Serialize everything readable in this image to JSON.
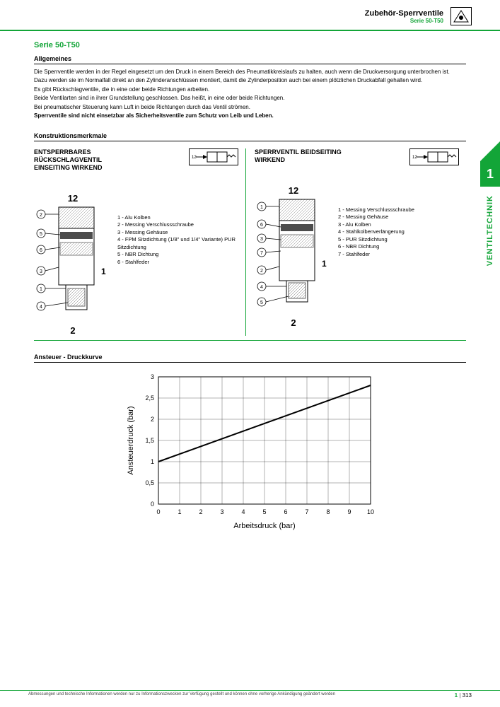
{
  "header": {
    "title": "Zubehör-Sperrventile",
    "subtitle": "Serie 50-T50",
    "logo_text": "PNEUMAX"
  },
  "side_tab": {
    "number": "1",
    "text": "VENTILTECHNIK"
  },
  "series_title": "Serie 50-T50",
  "general": {
    "heading": "Allgemeines",
    "p1": "Die Sperrventile werden in der Regel eingesetzt um den Druck in einem Bereich des Pneumatikkreislaufs zu halten, auch wenn die Druckversorgung unterbrochen ist.",
    "p2": "Dazu werden sie im Normalfall direkt an den Zylinderanschlüssen montiert, damit die Zylinderposition auch bei einem plötzlichen Druckabfall gehalten wird.",
    "p3": "Es gibt Rückschlagventile, die in eine oder beide Richtungen arbeiten.",
    "p4": "Beide Ventilarten sind in ihrer Grundstellung geschlossen. Das heißt, in eine oder beide Richtungen.",
    "p5": "Bei pneumatischer Steuerung kann Luft in beide Richtungen durch das Ventil strömen.",
    "p6": "Sperrventile sind nicht einsetzbar als Sicherheitsventile zum Schutz von Leib und Leben."
  },
  "construction_heading": "Konstruktionsmerkmale",
  "diagrams": {
    "left": {
      "title_l1": "ENTSPERRBARES",
      "title_l2": "RÜCKSCHLAGVENTIL",
      "title_l3": "EINSEITING WIRKEND",
      "port_top": "12",
      "port_mid": "1",
      "port_bot": "2",
      "callouts": [
        "2",
        "5",
        "6",
        "3",
        "1",
        "4"
      ],
      "legend": [
        "1 - Alu Kolben",
        "2 - Messing Verschlussschraube",
        "3 - Messing Gehäuse",
        "4 - FPM Sitzdichtung (1/8\" und 1/4\" Variante) PUR Sitzdichtung",
        "5 - NBR Dichtung",
        "6 - Stahlfeder"
      ],
      "symbol_label": "12"
    },
    "right": {
      "title_l1": "SPERRVENTIL BEIDSEITING",
      "title_l2": "WIRKEND",
      "port_top": "12",
      "port_mid": "1",
      "port_bot": "2",
      "callouts": [
        "1",
        "6",
        "3",
        "7",
        "2",
        "4",
        "5"
      ],
      "legend": [
        "1 - Messing Verschlussschraube",
        "2 - Messing Gehäuse",
        "3 - Alu Kolben",
        "4 - Stahlkolbenverlängerung",
        "5 - PUR Sitzdichtung",
        "6 - NBR Dichtung",
        "7 - Stahlfeder"
      ],
      "symbol_label": "12"
    }
  },
  "chart": {
    "heading": "Ansteuer - Druckkurve",
    "type": "line",
    "xlabel": "Arbeitsdruck (bar)",
    "ylabel": "Ansteuerdruck (bar)",
    "xlim": [
      0,
      10
    ],
    "xtick_step": 1,
    "ylim": [
      0,
      3
    ],
    "ytick_step": 0.5,
    "xticks": [
      "0",
      "1",
      "2",
      "3",
      "4",
      "5",
      "6",
      "7",
      "8",
      "9",
      "10"
    ],
    "yticks": [
      "0",
      "0,5",
      "1",
      "1,5",
      "2",
      "2,5",
      "3"
    ],
    "line_points": [
      [
        0,
        1.0
      ],
      [
        10,
        2.8
      ]
    ],
    "line_color": "#000000",
    "line_width": 2,
    "grid_color": "#000000",
    "grid_width": 0.3,
    "background_color": "#ffffff",
    "label_fontsize": 11
  },
  "footer": {
    "disclaimer": "Abmessungen und technische Informationen werden nur zu Informationszwecken zur Verfügung gestellt und können ohne vorherige Ankündigung geändert werden",
    "section": "1",
    "sep": " | ",
    "page": "313"
  },
  "colors": {
    "brand_green": "#13a538"
  }
}
